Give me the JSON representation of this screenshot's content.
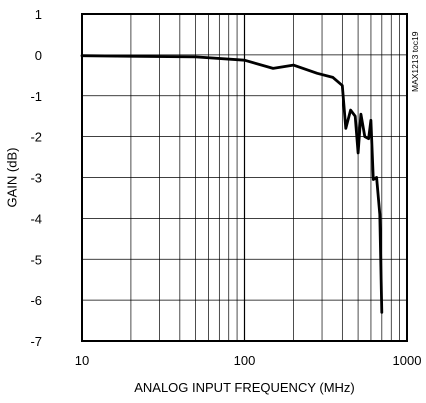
{
  "chart_data": {
    "type": "line",
    "xlabel": "ANALOG INPUT FREQUENCY (MHz)",
    "ylabel": "GAIN (dB)",
    "xscale": "log",
    "xlim": [
      10,
      1000
    ],
    "ylim": [
      -7,
      1
    ],
    "grid": true,
    "x_tick_labels": [
      "10",
      "100",
      "1000"
    ],
    "y_tick_labels": [
      "1",
      "0",
      "-1",
      "-2",
      "-3",
      "-4",
      "-5",
      "-6",
      "-7"
    ],
    "side_label": "MAX1213 toc19",
    "series": [
      {
        "x": [
          10,
          50,
          100,
          150,
          200,
          280,
          350,
          400,
          420,
          450,
          480,
          500,
          520,
          550,
          580,
          600,
          620,
          650,
          680,
          700
        ],
        "y": [
          -0.02,
          -0.05,
          -0.13,
          -0.33,
          -0.25,
          -0.45,
          -0.55,
          -0.75,
          -1.8,
          -1.35,
          -1.5,
          -2.4,
          -1.45,
          -2.0,
          -2.05,
          -1.6,
          -3.05,
          -3.0,
          -3.9,
          -6.3
        ]
      }
    ]
  }
}
